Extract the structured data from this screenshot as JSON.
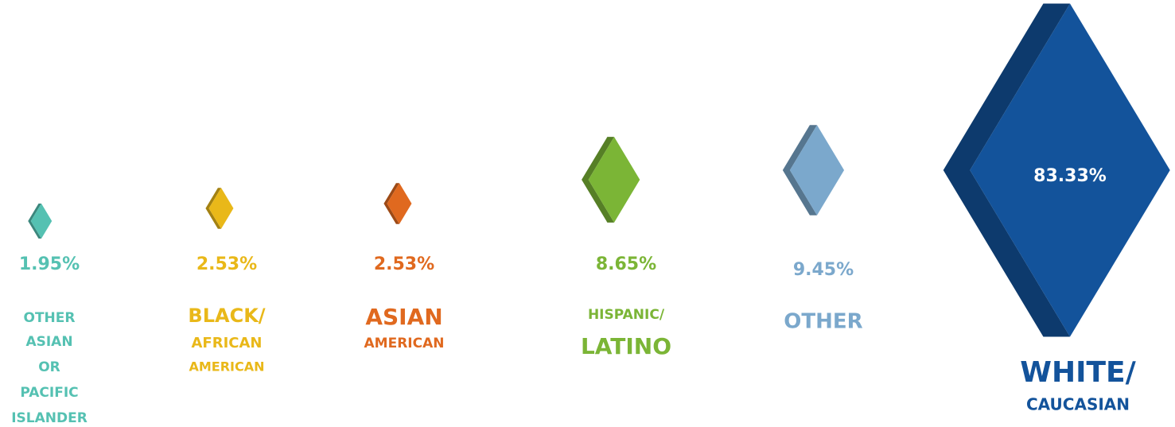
{
  "chart_data": {
    "type": "diamond",
    "categories": [
      [
        "OTHER",
        "ASIAN",
        "OR",
        "PACIFIC",
        "ISLANDER"
      ],
      [
        "BLACK/",
        "AFRICAN",
        "AMERICAN"
      ],
      [
        "ASIAN",
        "AMERICAN"
      ],
      [
        "HISPANIC/",
        "LATINO"
      ],
      [
        "OTHER"
      ],
      [
        "WHITE/",
        "CAUCASIAN"
      ]
    ],
    "values": [
      1.95,
      2.53,
      2.53,
      8.65,
      9.45,
      83.33
    ],
    "value_labels": [
      "1.95%",
      "2.53%",
      "2.53%",
      "8.65%",
      "9.45%",
      "83.33%"
    ],
    "colors": [
      "#55c1b2",
      "#e9b819",
      "#e0691f",
      "#7bb536",
      "#7ba8cc",
      "#13539b"
    ]
  }
}
